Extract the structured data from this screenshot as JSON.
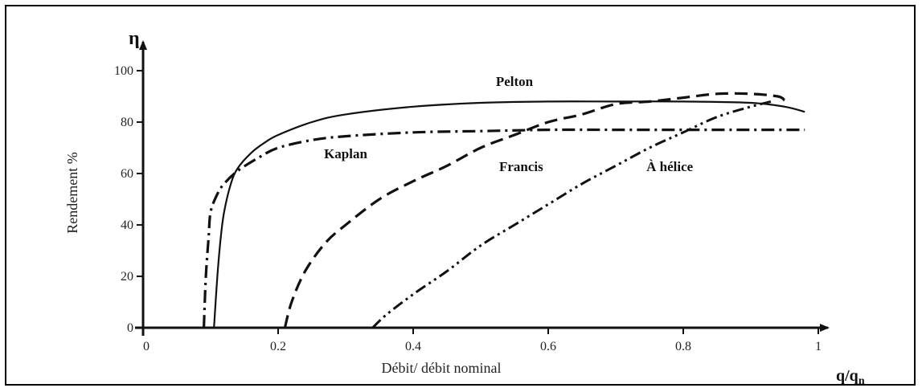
{
  "chart_data": {
    "type": "line",
    "title": "",
    "xlabel": "Débit/ débit nominal",
    "ylabel": "Rendement %",
    "y_symbol": "η",
    "x_axis_end_label": "q/qn",
    "xlim": [
      0,
      1
    ],
    "ylim": [
      0,
      100
    ],
    "x_ticks": [
      {
        "value": 0,
        "label": "0"
      },
      {
        "value": 0.2,
        "label": "0.2"
      },
      {
        "value": 0.4,
        "label": "0.4"
      },
      {
        "value": 0.6,
        "label": "0.6"
      },
      {
        "value": 0.8,
        "label": "0.8"
      },
      {
        "value": 1,
        "label": "1"
      }
    ],
    "y_ticks": [
      {
        "value": 0,
        "label": "0"
      },
      {
        "value": 20,
        "label": "20"
      },
      {
        "value": 40,
        "label": "40"
      },
      {
        "value": 60,
        "label": "60"
      },
      {
        "value": 80,
        "label": "80"
      },
      {
        "value": 100,
        "label": "100"
      }
    ],
    "grid": false,
    "series": [
      {
        "name": "Pelton",
        "style": "solid",
        "label_at": [
          0.55,
          94
        ],
        "x": [
          0.105,
          0.11,
          0.115,
          0.12,
          0.13,
          0.14,
          0.16,
          0.18,
          0.2,
          0.25,
          0.3,
          0.4,
          0.5,
          0.6,
          0.7,
          0.8,
          0.9,
          0.95,
          0.98
        ],
        "y": [
          0,
          20,
          35,
          45,
          56,
          62,
          68,
          72,
          75,
          80,
          83,
          86,
          87.5,
          88,
          88,
          88,
          87.5,
          86,
          84
        ]
      },
      {
        "name": "Kaplan",
        "style": "dashdot",
        "label_at": [
          0.3,
          66
        ],
        "x": [
          0.09,
          0.093,
          0.097,
          0.1,
          0.11,
          0.12,
          0.14,
          0.17,
          0.2,
          0.25,
          0.3,
          0.4,
          0.5,
          0.6,
          0.7,
          0.8,
          0.9,
          0.98
        ],
        "y": [
          0,
          20,
          35,
          45,
          52,
          56,
          61,
          66,
          70,
          73,
          74.5,
          76,
          76.5,
          77,
          77,
          77,
          77,
          77
        ]
      },
      {
        "name": "Francis",
        "style": "dashed",
        "label_at": [
          0.56,
          61
        ],
        "x": [
          0.21,
          0.22,
          0.24,
          0.27,
          0.3,
          0.35,
          0.4,
          0.45,
          0.5,
          0.55,
          0.6,
          0.65,
          0.7,
          0.75,
          0.8,
          0.85,
          0.9,
          0.94,
          0.95
        ],
        "y": [
          0,
          10,
          22,
          33,
          40,
          50,
          57,
          63,
          70,
          75,
          80,
          83,
          87,
          88,
          89.5,
          91,
          91,
          90,
          88.5
        ]
      },
      {
        "name": "À hélice",
        "style": "dashdotdot",
        "label_at": [
          0.78,
          61
        ],
        "x": [
          0.34,
          0.36,
          0.4,
          0.45,
          0.5,
          0.55,
          0.6,
          0.65,
          0.7,
          0.75,
          0.8,
          0.85,
          0.9,
          0.93
        ],
        "y": [
          0,
          5,
          13,
          22,
          32,
          40,
          48,
          56,
          63,
          70,
          76,
          82,
          86,
          88
        ]
      }
    ]
  }
}
